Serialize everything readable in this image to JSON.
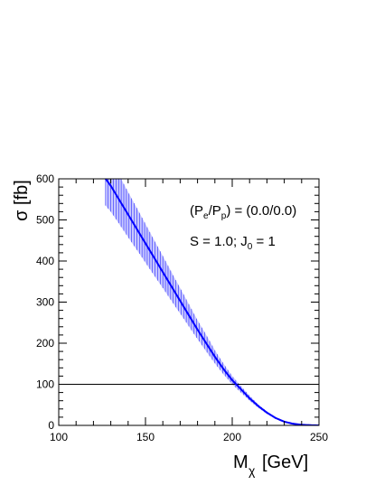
{
  "chart_data": {
    "type": "line",
    "title": "",
    "xlabel_main": "M",
    "xlabel_sub": "χ",
    "xlabel_unit": "[GeV]",
    "ylabel": "σ [fb]",
    "xlim": [
      100,
      250
    ],
    "ylim": [
      0,
      600
    ],
    "x_ticks": [
      100,
      150,
      200,
      250
    ],
    "y_ticks": [
      0,
      100,
      200,
      300,
      400,
      500,
      600
    ],
    "grid": false,
    "reference_line": {
      "y": 100
    },
    "annotations": {
      "polarisation": {
        "p_open": "(P",
        "e": "e",
        "slash": "/P",
        "p": "p",
        "rest": ") = (0.0/0.0)"
      },
      "spin": {
        "s_text": "S = 1.0; J",
        "j_sub": "0",
        "j_rest": " = 1"
      }
    },
    "series": [
      {
        "color": "#0000ff",
        "band_color": "#9b9bff",
        "x": [
          127,
          130,
          135,
          140,
          145,
          150,
          155,
          160,
          165,
          170,
          175,
          180,
          185,
          190,
          195,
          200,
          205,
          210,
          215,
          220,
          225,
          230,
          235,
          240,
          245,
          248,
          250
        ],
        "y": [
          600,
          583,
          548,
          513,
          478,
          443,
          408,
          373,
          338,
          303,
          268,
          233,
          200,
          167,
          137,
          110,
          88,
          66,
          47,
          31,
          18,
          9,
          4,
          1.5,
          0.5,
          0.2,
          0
        ],
        "err": [
          65,
          63,
          59,
          55,
          51,
          47,
          43,
          39,
          35,
          31,
          27,
          23,
          20,
          16,
          13,
          10,
          8,
          6,
          4,
          3,
          2,
          1,
          0.5,
          0.3,
          0.1,
          0,
          0
        ]
      }
    ]
  }
}
